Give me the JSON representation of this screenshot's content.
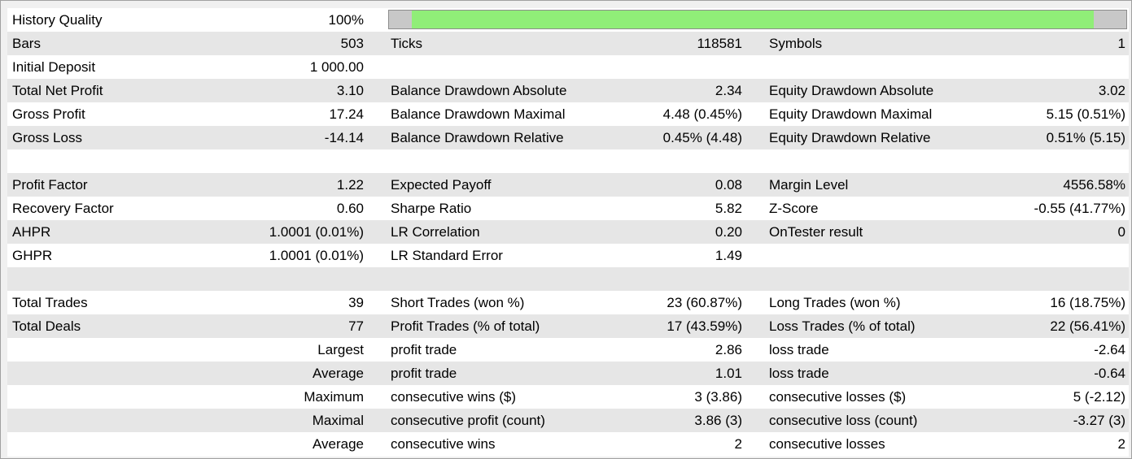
{
  "history_quality": {
    "label": "History Quality",
    "value": "100%",
    "bar_fraction": 1.0,
    "bar_color": "#90ee78"
  },
  "bars": {
    "label": "Bars",
    "value": "503"
  },
  "ticks": {
    "label": "Ticks",
    "value": "118581"
  },
  "symbols": {
    "label": "Symbols",
    "value": "1"
  },
  "initial_deposit": {
    "label": "Initial Deposit",
    "value": "1 000.00"
  },
  "total_net_profit": {
    "label": "Total Net Profit",
    "value": "3.10"
  },
  "balance_dd_absolute": {
    "label": "Balance Drawdown Absolute",
    "value": "2.34"
  },
  "equity_dd_absolute": {
    "label": "Equity Drawdown Absolute",
    "value": "3.02"
  },
  "gross_profit": {
    "label": "Gross Profit",
    "value": "17.24"
  },
  "balance_dd_maximal": {
    "label": "Balance Drawdown Maximal",
    "value": "4.48 (0.45%)"
  },
  "equity_dd_maximal": {
    "label": "Equity Drawdown Maximal",
    "value": "5.15 (0.51%)"
  },
  "gross_loss": {
    "label": "Gross Loss",
    "value": "-14.14"
  },
  "balance_dd_relative": {
    "label": "Balance Drawdown Relative",
    "value": "0.45% (4.48)"
  },
  "equity_dd_relative": {
    "label": "Equity Drawdown Relative",
    "value": "0.51% (5.15)"
  },
  "profit_factor": {
    "label": "Profit Factor",
    "value": "1.22"
  },
  "expected_payoff": {
    "label": "Expected Payoff",
    "value": "0.08"
  },
  "margin_level": {
    "label": "Margin Level",
    "value": "4556.58%"
  },
  "recovery_factor": {
    "label": "Recovery Factor",
    "value": "0.60"
  },
  "sharpe_ratio": {
    "label": "Sharpe Ratio",
    "value": "5.82"
  },
  "z_score": {
    "label": "Z-Score",
    "value": "-0.55 (41.77%)"
  },
  "ahpr": {
    "label": "AHPR",
    "value": "1.0001 (0.01%)"
  },
  "lr_correlation": {
    "label": "LR Correlation",
    "value": "0.20"
  },
  "ontester_result": {
    "label": "OnTester result",
    "value": "0"
  },
  "ghpr": {
    "label": "GHPR",
    "value": "1.0001 (0.01%)"
  },
  "lr_standard_error": {
    "label": "LR Standard Error",
    "value": "1.49"
  },
  "total_trades": {
    "label": "Total Trades",
    "value": "39"
  },
  "short_trades": {
    "label": "Short Trades (won %)",
    "value": "23 (60.87%)"
  },
  "long_trades": {
    "label": "Long Trades (won %)",
    "value": "16 (18.75%)"
  },
  "total_deals": {
    "label": "Total Deals",
    "value": "77"
  },
  "profit_trades": {
    "label": "Profit Trades (% of total)",
    "value": "17 (43.59%)"
  },
  "loss_trades": {
    "label": "Loss Trades (% of total)",
    "value": "22 (56.41%)"
  },
  "largest": {
    "prefix": "Largest",
    "profit_label": "profit trade",
    "profit_value": "2.86",
    "loss_label": "loss trade",
    "loss_value": "-2.64"
  },
  "average": {
    "prefix": "Average",
    "profit_label": "profit trade",
    "profit_value": "1.01",
    "loss_label": "loss trade",
    "loss_value": "-0.64"
  },
  "maximum": {
    "prefix": "Maximum",
    "profit_label": "consecutive wins ($)",
    "profit_value": "3 (3.86)",
    "loss_label": "consecutive losses ($)",
    "loss_value": "5 (-2.12)"
  },
  "maximal": {
    "prefix": "Maximal",
    "profit_label": "consecutive profit (count)",
    "profit_value": "3.86 (3)",
    "loss_label": "consecutive loss (count)",
    "loss_value": "-3.27 (3)"
  },
  "average_consecutive": {
    "prefix": "Average",
    "profit_label": "consecutive wins",
    "profit_value": "2",
    "loss_label": "consecutive losses",
    "loss_value": "2"
  }
}
